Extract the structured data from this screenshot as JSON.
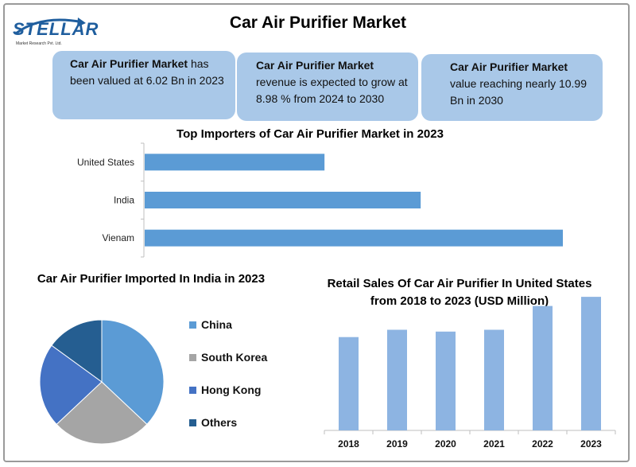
{
  "header": {
    "title": "Car Air Purifier Market",
    "logo_text": "STELLAR",
    "logo_tagline": "Market Research Pvt. Ltd."
  },
  "stats": [
    {
      "bold": "Car Air Purifier Market",
      "text": " has been valued at 6.02 Bn in 2023"
    },
    {
      "bold": "Car Air Purifier Market",
      "text": "revenue is expected to grow at 8.98 % from 2024 to 2030"
    },
    {
      "bold": "Car Air Purifier Market",
      "text": "value reaching nearly 10.99 Bn in 2030"
    }
  ],
  "colors": {
    "bar": "#5b9bd5",
    "column": "#8db4e2",
    "box": "#a9c8e8",
    "pie": [
      "#5b9bd5",
      "#a5a5a5",
      "#4472c4",
      "#255e91"
    ]
  },
  "chart_data": [
    {
      "type": "bar",
      "orientation": "horizontal",
      "title": "Top Importers of Car Air Purifier Market in 2023",
      "categories": [
        "United States",
        "India",
        "Vienam"
      ],
      "values": [
        43,
        66,
        100
      ],
      "xlim": [
        0,
        100
      ],
      "grid": false
    },
    {
      "type": "pie",
      "title": "Car Air Purifier Imported In India in 2023",
      "labels": [
        "China",
        "South Korea",
        "Hong Kong",
        "Others"
      ],
      "values": [
        37,
        26,
        22,
        15
      ],
      "legend": "right"
    },
    {
      "type": "bar",
      "title": "Retail Sales Of Car Air Purifier In United States from 2018 to 2023 (USD Million)",
      "categories": [
        "2018",
        "2019",
        "2020",
        "2021",
        "2022",
        "2023"
      ],
      "values": [
        51,
        55,
        54,
        55,
        68,
        73
      ],
      "ylim": [
        0,
        100
      ],
      "grid": false
    }
  ]
}
